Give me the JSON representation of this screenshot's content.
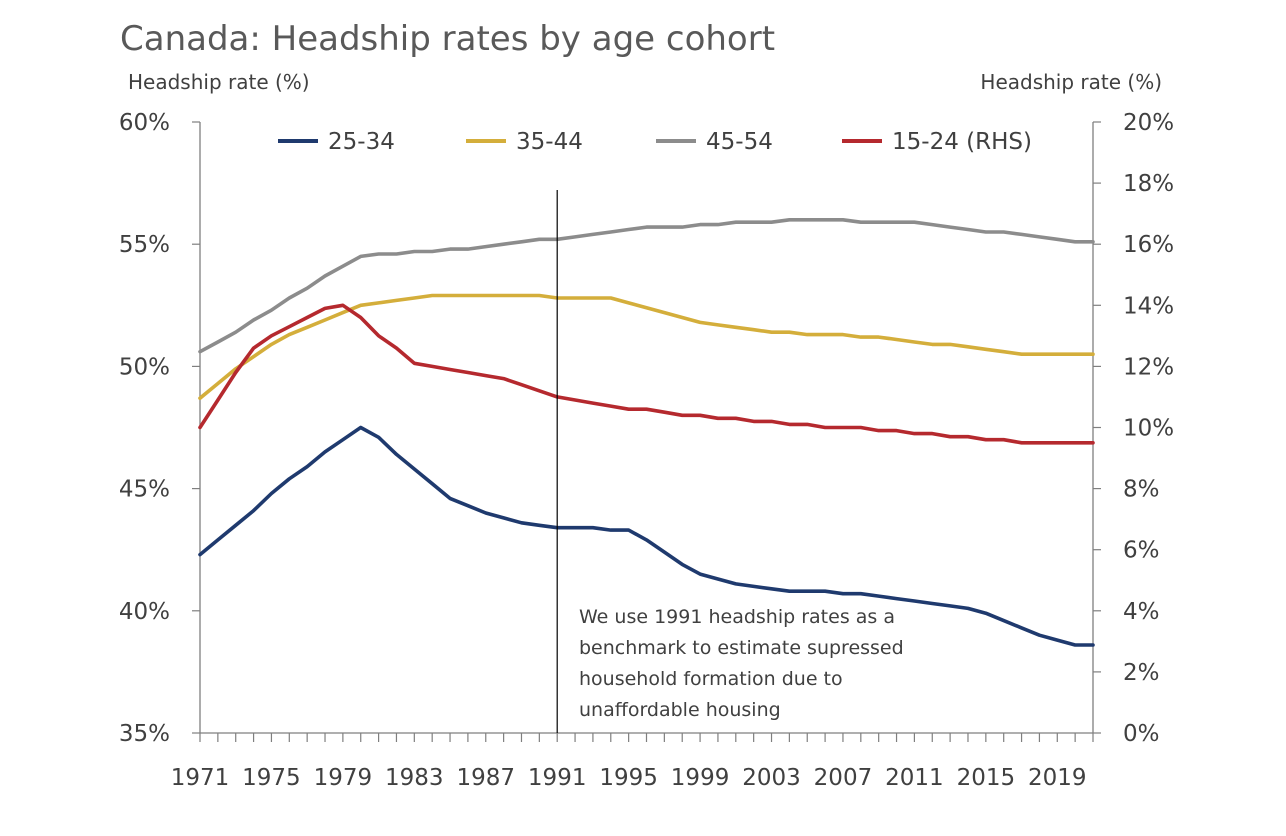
{
  "chart_data": {
    "type": "line",
    "title": "Canada: Headship rates by age cohort",
    "ylabel": "Headship rate (%)",
    "y2label": "Headship rate (%)",
    "ylim": [
      35,
      60
    ],
    "y2lim": [
      0,
      20
    ],
    "yticks": [
      "35%",
      "40%",
      "45%",
      "50%",
      "55%",
      "60%"
    ],
    "y2ticks": [
      "0%",
      "2%",
      "4%",
      "6%",
      "8%",
      "10%",
      "12%",
      "14%",
      "16%",
      "18%",
      "20%"
    ],
    "x_range": [
      1971,
      2021
    ],
    "x_tick_labels": [
      "1971",
      "1975",
      "1979",
      "1983",
      "1987",
      "1991",
      "1995",
      "1999",
      "2003",
      "2007",
      "2011",
      "2015",
      "2019"
    ],
    "grid": false,
    "legend_position": "top",
    "x": [
      1971,
      1972,
      1973,
      1974,
      1975,
      1976,
      1977,
      1978,
      1979,
      1980,
      1981,
      1982,
      1983,
      1984,
      1985,
      1986,
      1987,
      1988,
      1989,
      1990,
      1991,
      1992,
      1993,
      1994,
      1995,
      1996,
      1997,
      1998,
      1999,
      2000,
      2001,
      2002,
      2003,
      2004,
      2005,
      2006,
      2007,
      2008,
      2009,
      2010,
      2011,
      2012,
      2013,
      2014,
      2015,
      2016,
      2017,
      2018,
      2019,
      2020,
      2021
    ],
    "series": [
      {
        "name": "25-34",
        "axis": "left",
        "color": "#1f3a6e",
        "values": [
          42.3,
          42.9,
          43.5,
          44.1,
          44.8,
          45.4,
          45.9,
          46.5,
          47.0,
          47.5,
          47.1,
          46.4,
          45.8,
          45.2,
          44.6,
          44.3,
          44.0,
          43.8,
          43.6,
          43.5,
          43.4,
          43.4,
          43.4,
          43.3,
          43.3,
          42.9,
          42.4,
          41.9,
          41.5,
          41.3,
          41.1,
          41.0,
          40.9,
          40.8,
          40.8,
          40.8,
          40.7,
          40.7,
          40.6,
          40.5,
          40.4,
          40.3,
          40.2,
          40.1,
          39.9,
          39.6,
          39.3,
          39.0,
          38.8,
          38.6,
          38.6
        ]
      },
      {
        "name": "35-44",
        "axis": "left",
        "color": "#d4ae3b",
        "values": [
          48.7,
          49.3,
          49.9,
          50.4,
          50.9,
          51.3,
          51.6,
          51.9,
          52.2,
          52.5,
          52.6,
          52.7,
          52.8,
          52.9,
          52.9,
          52.9,
          52.9,
          52.9,
          52.9,
          52.9,
          52.8,
          52.8,
          52.8,
          52.8,
          52.6,
          52.4,
          52.2,
          52.0,
          51.8,
          51.7,
          51.6,
          51.5,
          51.4,
          51.4,
          51.3,
          51.3,
          51.3,
          51.2,
          51.2,
          51.1,
          51.0,
          50.9,
          50.9,
          50.8,
          50.7,
          50.6,
          50.5,
          50.5,
          50.5,
          50.5,
          50.5
        ]
      },
      {
        "name": "45-54",
        "axis": "left",
        "color": "#8c8c8c",
        "values": [
          50.6,
          51.0,
          51.4,
          51.9,
          52.3,
          52.8,
          53.2,
          53.7,
          54.1,
          54.5,
          54.6,
          54.6,
          54.7,
          54.7,
          54.8,
          54.8,
          54.9,
          55.0,
          55.1,
          55.2,
          55.2,
          55.3,
          55.4,
          55.5,
          55.6,
          55.7,
          55.7,
          55.7,
          55.8,
          55.8,
          55.9,
          55.9,
          55.9,
          56.0,
          56.0,
          56.0,
          56.0,
          55.9,
          55.9,
          55.9,
          55.9,
          55.8,
          55.7,
          55.6,
          55.5,
          55.5,
          55.4,
          55.3,
          55.2,
          55.1,
          55.1
        ]
      },
      {
        "name": "15-24 (RHS)",
        "axis": "right",
        "color": "#b5292e",
        "values": [
          10.0,
          10.9,
          11.8,
          12.6,
          13.0,
          13.3,
          13.6,
          13.9,
          14.0,
          13.6,
          13.0,
          12.6,
          12.1,
          12.0,
          11.9,
          11.8,
          11.7,
          11.6,
          11.4,
          11.2,
          11.0,
          10.9,
          10.8,
          10.7,
          10.6,
          10.6,
          10.5,
          10.4,
          10.4,
          10.3,
          10.3,
          10.2,
          10.2,
          10.1,
          10.1,
          10.0,
          10.0,
          10.0,
          9.9,
          9.9,
          9.8,
          9.8,
          9.7,
          9.7,
          9.6,
          9.6,
          9.5,
          9.5,
          9.5,
          9.5,
          9.5
        ]
      }
    ],
    "marker": {
      "x": 1991,
      "annotation_lines": [
        "We use 1991 headship rates as a",
        "benchmark to estimate supressed",
        "household formation due to",
        "unaffordable housing"
      ]
    }
  }
}
